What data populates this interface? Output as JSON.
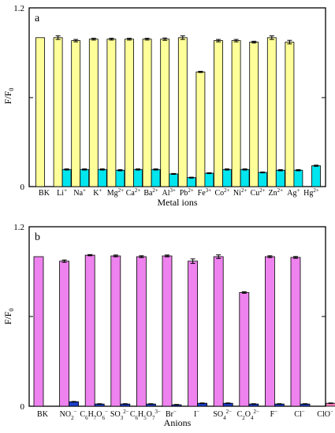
{
  "colors": {
    "panel_a_main": "#ffff99",
    "panel_a_treated": "#00e5ee",
    "panel_b_main": "#ee82ee",
    "panel_b_treated": "#1c3fc8",
    "panel_b_clo_treated": "#ff7fbf"
  },
  "chart_data": [
    {
      "type": "bar",
      "panel_label": "a",
      "xlabel": "Metal ions",
      "ylabel": "F/F",
      "ylabel_sub": "0",
      "ylim": [
        0,
        1.2
      ],
      "ytick_labels": [
        "0",
        "1.2"
      ],
      "grid": false,
      "categories": [
        {
          "base": "BK",
          "sup": ""
        },
        {
          "base": "Li",
          "sup": "+"
        },
        {
          "base": "Na",
          "sup": "+"
        },
        {
          "base": "K",
          "sup": "+"
        },
        {
          "base": "Mg",
          "sup": "2+"
        },
        {
          "base": "Ca",
          "sup": "2+"
        },
        {
          "base": "Ba",
          "sup": "2+"
        },
        {
          "base": "Al",
          "sup": "3+"
        },
        {
          "base": "Pb",
          "sup": "2+"
        },
        {
          "base": "Fe",
          "sup": "3+"
        },
        {
          "base": "Co",
          "sup": "2+"
        },
        {
          "base": "Ni",
          "sup": "2+"
        },
        {
          "base": "Cu",
          "sup": "2+"
        },
        {
          "base": "Zn",
          "sup": "2+"
        },
        {
          "base": "Ag",
          "sup": "+"
        },
        {
          "base": "Hg",
          "sup": "2+"
        }
      ],
      "series": [
        {
          "values": [
            1.0,
            1.0,
            0.98,
            0.99,
            0.99,
            0.99,
            0.99,
            0.99,
            1.0,
            0.77,
            0.98,
            0.98,
            0.97,
            1.0,
            0.97,
            null
          ],
          "errors": [
            0,
            0.012,
            0.008,
            0.006,
            0.006,
            0.006,
            0.006,
            0.008,
            0.012,
            0.004,
            0.008,
            0.008,
            0.006,
            0.012,
            0.012,
            0
          ]
        },
        {
          "values": [
            null,
            0.115,
            0.115,
            0.115,
            0.11,
            0.115,
            0.115,
            0.085,
            0.06,
            0.09,
            0.115,
            0.115,
            0.095,
            0.11,
            0.11,
            0.14
          ],
          "errors": [
            0,
            0.004,
            0.004,
            0.004,
            0.004,
            0.004,
            0.004,
            0.003,
            0.003,
            0.003,
            0.004,
            0.004,
            0.003,
            0.004,
            0.004,
            0.004
          ]
        }
      ]
    },
    {
      "type": "bar",
      "panel_label": "b",
      "xlabel": "Anions",
      "ylabel": "F/F",
      "ylabel_sub": "0",
      "ylim": [
        0,
        1.2
      ],
      "ytick_labels": [
        "0",
        "1.2"
      ],
      "grid": false,
      "categories": [
        {
          "parts": [
            {
              "t": "BK",
              "s": "n"
            }
          ]
        },
        {
          "parts": [
            {
              "t": "NO",
              "s": "n"
            },
            {
              "t": "2",
              "s": "sub"
            },
            {
              "t": "−",
              "s": "sup"
            }
          ]
        },
        {
          "parts": [
            {
              "t": "C",
              "s": "n"
            },
            {
              "t": "6",
              "s": "sub"
            },
            {
              "t": "H",
              "s": "n"
            },
            {
              "t": "7",
              "s": "sub"
            },
            {
              "t": "O",
              "s": "n"
            },
            {
              "t": "6",
              "s": "sub"
            },
            {
              "t": "−",
              "s": "sup"
            }
          ]
        },
        {
          "parts": [
            {
              "t": "SO",
              "s": "n"
            },
            {
              "t": "3",
              "s": "sub"
            },
            {
              "t": "2−",
              "s": "sup"
            }
          ]
        },
        {
          "parts": [
            {
              "t": "C",
              "s": "n"
            },
            {
              "t": "6",
              "s": "sub"
            },
            {
              "t": "H",
              "s": "n"
            },
            {
              "t": "5",
              "s": "sub"
            },
            {
              "t": "O",
              "s": "n"
            },
            {
              "t": "7",
              "s": "sub"
            },
            {
              "t": "3−",
              "s": "sup"
            }
          ]
        },
        {
          "parts": [
            {
              "t": "Br",
              "s": "n"
            },
            {
              "t": "−",
              "s": "sup"
            }
          ]
        },
        {
          "parts": [
            {
              "t": "I",
              "s": "n"
            },
            {
              "t": "−",
              "s": "sup"
            }
          ]
        },
        {
          "parts": [
            {
              "t": "SO",
              "s": "n"
            },
            {
              "t": "4",
              "s": "sub"
            },
            {
              "t": "2−",
              "s": "sup"
            }
          ]
        },
        {
          "parts": [
            {
              "t": "C",
              "s": "n"
            },
            {
              "t": "2",
              "s": "sub"
            },
            {
              "t": "O",
              "s": "n"
            },
            {
              "t": "4",
              "s": "sub"
            },
            {
              "t": "2−",
              "s": "sup"
            }
          ]
        },
        {
          "parts": [
            {
              "t": "F",
              "s": "n"
            },
            {
              "t": "−",
              "s": "sup"
            }
          ]
        },
        {
          "parts": [
            {
              "t": "Cl",
              "s": "n"
            },
            {
              "t": "−",
              "s": "sup"
            }
          ]
        },
        {
          "parts": [
            {
              "t": "ClO",
              "s": "n"
            },
            {
              "t": "−",
              "s": "sup"
            }
          ]
        }
      ],
      "series": [
        {
          "values": [
            1.0,
            0.97,
            1.01,
            1.005,
            1.0,
            1.005,
            0.97,
            1.0,
            0.76,
            1.0,
            0.995,
            null
          ],
          "errors": [
            0,
            0.008,
            0.004,
            0.006,
            0.006,
            0.006,
            0.015,
            0.012,
            0.005,
            0.006,
            0.006,
            0
          ]
        },
        {
          "values": [
            null,
            0.03,
            0.015,
            0.015,
            0.015,
            0.01,
            0.02,
            0.02,
            0.015,
            0.015,
            0.015,
            0.02
          ],
          "errors": [
            0,
            0.002,
            0.002,
            0.002,
            0.002,
            0.002,
            0.002,
            0.002,
            0.002,
            0.002,
            0.002,
            0.002
          ]
        }
      ]
    }
  ]
}
